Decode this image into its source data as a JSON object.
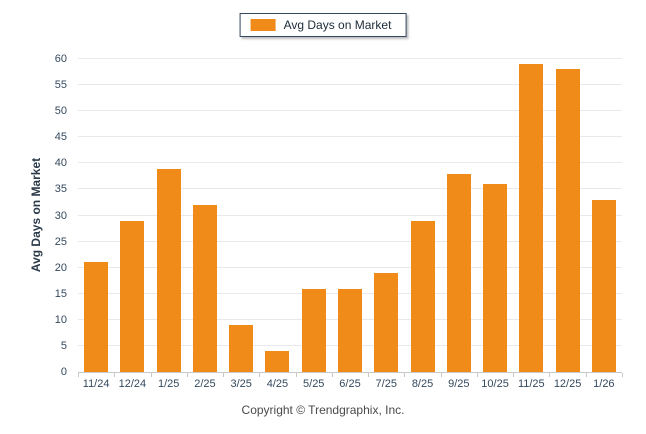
{
  "legend": {
    "label": "Avg Days on Market"
  },
  "footer": {
    "copyright": "Copyright © Trendgraphix, Inc."
  },
  "colors": {
    "bar": "#F08A18",
    "gridline": "#E9E9E9",
    "axis_line": "#C8C8C8",
    "tick_label": "#34495E",
    "legend_border": "#33475E"
  },
  "chart_data": {
    "type": "bar",
    "title": "",
    "categories": [
      "11/24",
      "12/24",
      "1/25",
      "2/25",
      "3/25",
      "4/25",
      "5/25",
      "6/25",
      "7/25",
      "8/25",
      "9/25",
      "10/25",
      "11/25",
      "12/25",
      "1/26"
    ],
    "values": [
      21,
      29,
      39,
      32,
      9,
      4,
      16,
      16,
      19,
      29,
      38,
      36,
      59,
      58,
      33
    ],
    "series_name": "Avg Days on Market",
    "xlabel": "",
    "ylabel": "Avg Days on Market",
    "ylim": [
      0,
      60
    ],
    "yticks": [
      0,
      5,
      10,
      15,
      20,
      25,
      30,
      35,
      40,
      45,
      50,
      55,
      60
    ],
    "grid": true,
    "legend_position": "top-center"
  }
}
